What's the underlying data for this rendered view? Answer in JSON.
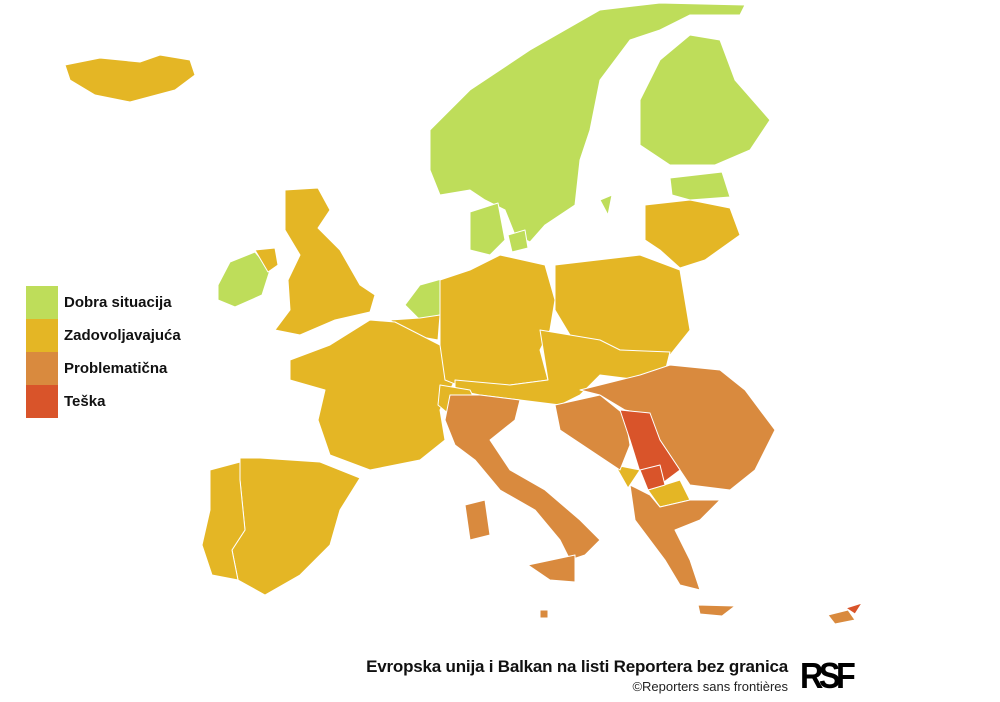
{
  "legend": {
    "items": [
      {
        "label": "Dobra situacija",
        "color": "#bedd5a"
      },
      {
        "label": "Zadovoljavajuća",
        "color": "#e4b625"
      },
      {
        "label": "Problematična",
        "color": "#d98a3e"
      },
      {
        "label": "Teška",
        "color": "#d9542a"
      }
    ]
  },
  "caption": {
    "title": "Evropska unija i Balkan na listi Reportera bez granica",
    "credit": "©Reporters sans frontières"
  },
  "logo": {
    "text": "RSF"
  }
}
